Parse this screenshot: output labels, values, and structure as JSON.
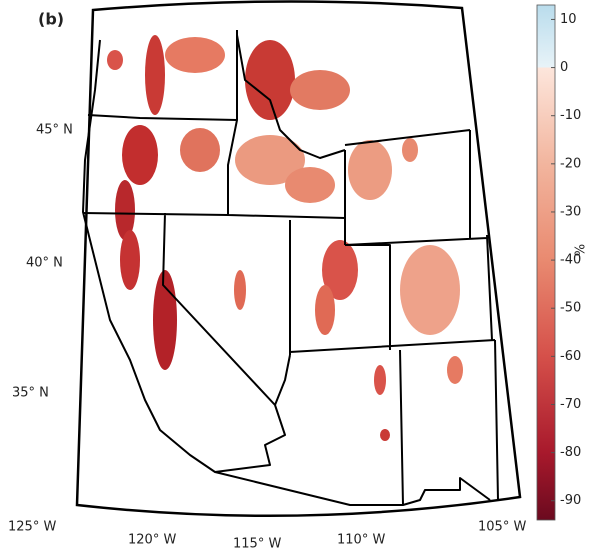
{
  "panel_label": "(b)",
  "latitude_labels": [
    "45° N",
    "40° N",
    "35° N"
  ],
  "longitude_labels": [
    "125° W",
    "120° W",
    "115° W",
    "110° W",
    "105° W"
  ],
  "colorbar": {
    "unit": "%",
    "lim": [
      -94,
      13
    ],
    "ticks": [
      10,
      0,
      -10,
      -20,
      -30,
      -40,
      -50,
      -60,
      -70,
      -80,
      -90
    ]
  }
}
